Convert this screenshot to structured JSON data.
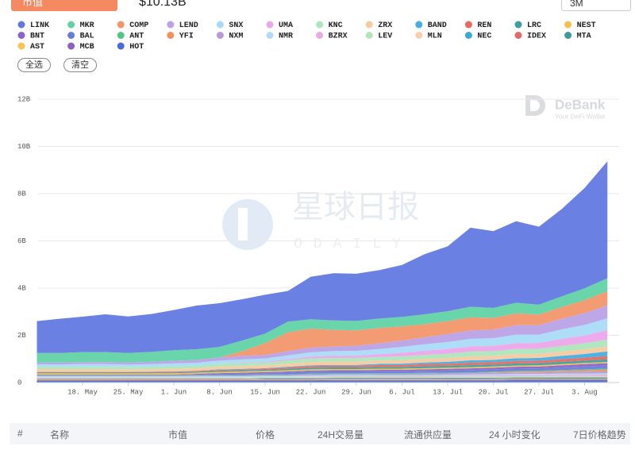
{
  "header": {
    "tab": "市值",
    "value": "$10.13B",
    "range": "3M"
  },
  "buttons": [
    "全选",
    "清空"
  ],
  "watermark": {
    "brand": "DeBank",
    "tagline": "Your DeFi Wallet",
    "site": "星球日报",
    "site_en": "ODAILY"
  },
  "table": {
    "columns": [
      "#",
      "名称",
      "市值",
      "价格",
      "24H交易量",
      "流通供应量",
      "24 小时变化",
      "7日价格趋势"
    ]
  },
  "chart_data": {
    "type": "area",
    "stacked": true,
    "categories": [
      null,
      null,
      "18. May",
      null,
      "25. May",
      null,
      "1. Jun",
      null,
      "8. Jun",
      null,
      "15. Jun",
      null,
      "22. Jun",
      null,
      "29. Jun",
      null,
      "6. Jul",
      null,
      "13. Jul",
      null,
      "20. Jul",
      null,
      "27. Jul",
      null,
      "3. Aug",
      null
    ],
    "ylim": [
      0,
      12
    ],
    "yticks": [
      0,
      {
        "value": 2,
        "label": "2B"
      },
      {
        "value": 4,
        "label": "4B"
      },
      {
        "value": 6,
        "label": "6B"
      },
      {
        "value": 8,
        "label": "8B"
      },
      {
        "value": 10,
        "label": "10B"
      },
      {
        "value": 12,
        "label": "12B"
      }
    ],
    "grid": true,
    "series": [
      {
        "name": "LINK",
        "color": "#6279e0",
        "values": [
          1.35,
          1.45,
          1.5,
          1.6,
          1.55,
          1.6,
          1.7,
          1.85,
          1.85,
          1.75,
          1.65,
          1.3,
          1.8,
          2.0,
          2.0,
          2.05,
          2.2,
          2.55,
          2.75,
          3.35,
          3.25,
          3.45,
          3.3,
          3.7,
          4.25,
          4.95
        ]
      },
      {
        "name": "MKR",
        "color": "#62d2a6",
        "values": [
          0.4,
          0.4,
          0.42,
          0.42,
          0.4,
          0.42,
          0.45,
          0.45,
          0.45,
          0.45,
          0.4,
          0.45,
          0.4,
          0.4,
          0.4,
          0.4,
          0.4,
          0.42,
          0.42,
          0.45,
          0.42,
          0.45,
          0.42,
          0.45,
          0.5,
          0.55
        ]
      },
      {
        "name": "COMP",
        "color": "#f2966a",
        "values": [
          0,
          0,
          0,
          0,
          0,
          0,
          0,
          0,
          0,
          0.2,
          0.5,
          0.8,
          0.8,
          0.7,
          0.65,
          0.65,
          0.6,
          0.55,
          0.55,
          0.55,
          0.5,
          0.5,
          0.45,
          0.5,
          0.55,
          0.6
        ]
      },
      {
        "name": "LEND",
        "color": "#bba2e6",
        "values": [
          0.08,
          0.08,
          0.09,
          0.09,
          0.09,
          0.1,
          0.11,
          0.12,
          0.13,
          0.15,
          0.15,
          0.18,
          0.2,
          0.2,
          0.22,
          0.24,
          0.27,
          0.3,
          0.33,
          0.36,
          0.36,
          0.4,
          0.4,
          0.45,
          0.5,
          0.55
        ]
      },
      {
        "name": "SNX",
        "color": "#a9dbf7",
        "values": [
          0.1,
          0.1,
          0.11,
          0.11,
          0.1,
          0.11,
          0.12,
          0.12,
          0.13,
          0.14,
          0.14,
          0.16,
          0.18,
          0.19,
          0.2,
          0.22,
          0.25,
          0.27,
          0.3,
          0.32,
          0.33,
          0.36,
          0.35,
          0.4,
          0.45,
          0.5
        ]
      },
      {
        "name": "UMA",
        "color": "#eca6ea",
        "values": [
          0,
          0,
          0,
          0,
          0,
          0,
          0,
          0,
          0,
          0.02,
          0.03,
          0.05,
          0.08,
          0.1,
          0.1,
          0.12,
          0.15,
          0.18,
          0.2,
          0.22,
          0.22,
          0.25,
          0.25,
          0.3,
          0.33,
          0.4
        ]
      },
      {
        "name": "KNC",
        "color": "#abe7bc",
        "values": [
          0.1,
          0.1,
          0.1,
          0.1,
          0.1,
          0.1,
          0.11,
          0.11,
          0.12,
          0.12,
          0.12,
          0.14,
          0.15,
          0.15,
          0.15,
          0.15,
          0.16,
          0.17,
          0.18,
          0.2,
          0.2,
          0.21,
          0.21,
          0.23,
          0.25,
          0.28
        ]
      },
      {
        "name": "ZRX",
        "color": "#f6caa2",
        "values": [
          0.12,
          0.12,
          0.12,
          0.12,
          0.11,
          0.11,
          0.11,
          0.11,
          0.12,
          0.12,
          0.12,
          0.13,
          0.14,
          0.14,
          0.14,
          0.14,
          0.15,
          0.15,
          0.16,
          0.17,
          0.17,
          0.18,
          0.18,
          0.19,
          0.2,
          0.22
        ]
      },
      {
        "name": "BAND",
        "color": "#44aee2",
        "values": [
          0.01,
          0.01,
          0.01,
          0.01,
          0.01,
          0.01,
          0.01,
          0.01,
          0.02,
          0.02,
          0.02,
          0.03,
          0.03,
          0.04,
          0.04,
          0.05,
          0.06,
          0.07,
          0.08,
          0.1,
          0.1,
          0.12,
          0.12,
          0.14,
          0.16,
          0.2
        ]
      },
      {
        "name": "REN",
        "color": "#e9695f",
        "values": [
          0.02,
          0.02,
          0.02,
          0.02,
          0.02,
          0.03,
          0.03,
          0.03,
          0.04,
          0.04,
          0.05,
          0.06,
          0.07,
          0.07,
          0.07,
          0.08,
          0.08,
          0.09,
          0.09,
          0.1,
          0.1,
          0.1,
          0.1,
          0.11,
          0.12,
          0.13
        ]
      },
      {
        "name": "LRC",
        "color": "#3e9fa2",
        "values": [
          0.03,
          0.03,
          0.03,
          0.03,
          0.03,
          0.03,
          0.04,
          0.04,
          0.05,
          0.05,
          0.05,
          0.06,
          0.07,
          0.07,
          0.07,
          0.07,
          0.07,
          0.08,
          0.08,
          0.09,
          0.08,
          0.09,
          0.09,
          0.1,
          0.1,
          0.12
        ]
      },
      {
        "name": "NEST",
        "color": "#f5c14c",
        "values": [
          0.05,
          0.05,
          0.05,
          0.05,
          0.05,
          0.05,
          0.05,
          0.05,
          0.05,
          0.05,
          0.05,
          0.05,
          0.05,
          0.05,
          0.05,
          0.05,
          0.05,
          0.05,
          0.05,
          0.05,
          0.05,
          0.05,
          0.05,
          0.05,
          0.05,
          0.05
        ]
      },
      {
        "name": "BNT",
        "color": "#8b64ca",
        "values": [
          0.03,
          0.03,
          0.03,
          0.03,
          0.03,
          0.03,
          0.03,
          0.04,
          0.04,
          0.04,
          0.04,
          0.05,
          0.05,
          0.05,
          0.05,
          0.06,
          0.06,
          0.06,
          0.07,
          0.07,
          0.07,
          0.08,
          0.08,
          0.09,
          0.1,
          0.1
        ]
      },
      {
        "name": "BAL",
        "color": "#6b7bd9",
        "values": [
          0,
          0,
          0,
          0,
          0,
          0,
          0,
          0.02,
          0.04,
          0.06,
          0.06,
          0.08,
          0.08,
          0.08,
          0.08,
          0.08,
          0.08,
          0.09,
          0.09,
          0.1,
          0.1,
          0.1,
          0.1,
          0.11,
          0.12,
          0.13
        ]
      },
      {
        "name": "ANT",
        "color": "#53c58b",
        "values": [
          0.02,
          0.02,
          0.02,
          0.02,
          0.02,
          0.02,
          0.02,
          0.02,
          0.02,
          0.02,
          0.02,
          0.02,
          0.03,
          0.03,
          0.03,
          0.03,
          0.03,
          0.03,
          0.03,
          0.03,
          0.03,
          0.03,
          0.03,
          0.03,
          0.04,
          0.04
        ]
      },
      {
        "name": "YFI",
        "color": "#f1915b",
        "values": [
          0,
          0,
          0,
          0,
          0,
          0,
          0,
          0,
          0,
          0,
          0,
          0,
          0,
          0,
          0,
          0,
          0,
          0,
          0,
          0,
          0.02,
          0.03,
          0.04,
          0.05,
          0.06,
          0.08
        ]
      },
      {
        "name": "NXM",
        "color": "#b89bd9",
        "values": [
          0.03,
          0.03,
          0.03,
          0.03,
          0.03,
          0.03,
          0.03,
          0.03,
          0.04,
          0.04,
          0.04,
          0.04,
          0.05,
          0.05,
          0.05,
          0.05,
          0.05,
          0.06,
          0.06,
          0.06,
          0.06,
          0.07,
          0.07,
          0.07,
          0.08,
          0.08
        ]
      },
      {
        "name": "NMR",
        "color": "#b1dbf6",
        "values": [
          0.04,
          0.04,
          0.04,
          0.04,
          0.04,
          0.04,
          0.04,
          0.04,
          0.04,
          0.04,
          0.04,
          0.04,
          0.04,
          0.04,
          0.04,
          0.04,
          0.04,
          0.04,
          0.04,
          0.04,
          0.05,
          0.05,
          0.05,
          0.05,
          0.05,
          0.05
        ]
      },
      {
        "name": "BZRX",
        "color": "#e9a9e2",
        "values": [
          0,
          0,
          0,
          0,
          0,
          0,
          0,
          0,
          0,
          0,
          0,
          0,
          0.02,
          0.02,
          0.02,
          0.03,
          0.03,
          0.03,
          0.03,
          0.04,
          0.04,
          0.04,
          0.04,
          0.05,
          0.05,
          0.06
        ]
      },
      {
        "name": "LEV",
        "color": "#b2e5ba",
        "values": [
          0.03,
          0.03,
          0.03,
          0.03,
          0.03,
          0.03,
          0.03,
          0.03,
          0.03,
          0.03,
          0.03,
          0.03,
          0.03,
          0.03,
          0.03,
          0.03,
          0.03,
          0.03,
          0.03,
          0.03,
          0.03,
          0.03,
          0.03,
          0.03,
          0.03,
          0.03
        ]
      },
      {
        "name": "MLN",
        "color": "#f6d0aa",
        "values": [
          0.02,
          0.02,
          0.02,
          0.02,
          0.02,
          0.02,
          0.02,
          0.02,
          0.02,
          0.02,
          0.02,
          0.02,
          0.02,
          0.02,
          0.02,
          0.02,
          0.02,
          0.02,
          0.02,
          0.02,
          0.02,
          0.02,
          0.02,
          0.02,
          0.02,
          0.02
        ]
      },
      {
        "name": "NEC",
        "color": "#3ba9da",
        "values": [
          0.02,
          0.02,
          0.02,
          0.02,
          0.02,
          0.02,
          0.02,
          0.02,
          0.02,
          0.02,
          0.02,
          0.02,
          0.02,
          0.02,
          0.02,
          0.02,
          0.02,
          0.02,
          0.02,
          0.02,
          0.02,
          0.02,
          0.02,
          0.02,
          0.02,
          0.02
        ]
      },
      {
        "name": "IDEX",
        "color": "#e16969",
        "values": [
          0.02,
          0.02,
          0.02,
          0.02,
          0.02,
          0.02,
          0.02,
          0.02,
          0.02,
          0.02,
          0.02,
          0.02,
          0.02,
          0.02,
          0.02,
          0.02,
          0.02,
          0.02,
          0.02,
          0.02,
          0.02,
          0.02,
          0.02,
          0.02,
          0.02,
          0.02
        ]
      },
      {
        "name": "MTA",
        "color": "#3b9b99",
        "values": [
          0,
          0,
          0,
          0,
          0,
          0,
          0,
          0,
          0,
          0,
          0.02,
          0.02,
          0.02,
          0.02,
          0.02,
          0.02,
          0.02,
          0.02,
          0.03,
          0.03,
          0.03,
          0.03,
          0.03,
          0.04,
          0.04,
          0.04
        ]
      },
      {
        "name": "AST",
        "color": "#f6c552",
        "values": [
          0.03,
          0.03,
          0.03,
          0.03,
          0.03,
          0.03,
          0.03,
          0.03,
          0.03,
          0.03,
          0.03,
          0.03,
          0.03,
          0.03,
          0.03,
          0.03,
          0.03,
          0.03,
          0.03,
          0.03,
          0.03,
          0.03,
          0.03,
          0.03,
          0.03,
          0.03
        ]
      },
      {
        "name": "MCB",
        "color": "#8b61c1",
        "values": [
          0.02,
          0.02,
          0.02,
          0.02,
          0.02,
          0.02,
          0.02,
          0.02,
          0.02,
          0.02,
          0.02,
          0.02,
          0.02,
          0.02,
          0.02,
          0.02,
          0.02,
          0.02,
          0.02,
          0.02,
          0.02,
          0.02,
          0.02,
          0.02,
          0.02,
          0.02
        ]
      },
      {
        "name": "HOT",
        "color": "#4b6bd9",
        "values": [
          0.08,
          0.08,
          0.08,
          0.08,
          0.08,
          0.08,
          0.08,
          0.08,
          0.08,
          0.08,
          0.08,
          0.08,
          0.08,
          0.09,
          0.09,
          0.09,
          0.09,
          0.09,
          0.09,
          0.09,
          0.09,
          0.1,
          0.1,
          0.1,
          0.1,
          0.1
        ]
      }
    ]
  }
}
